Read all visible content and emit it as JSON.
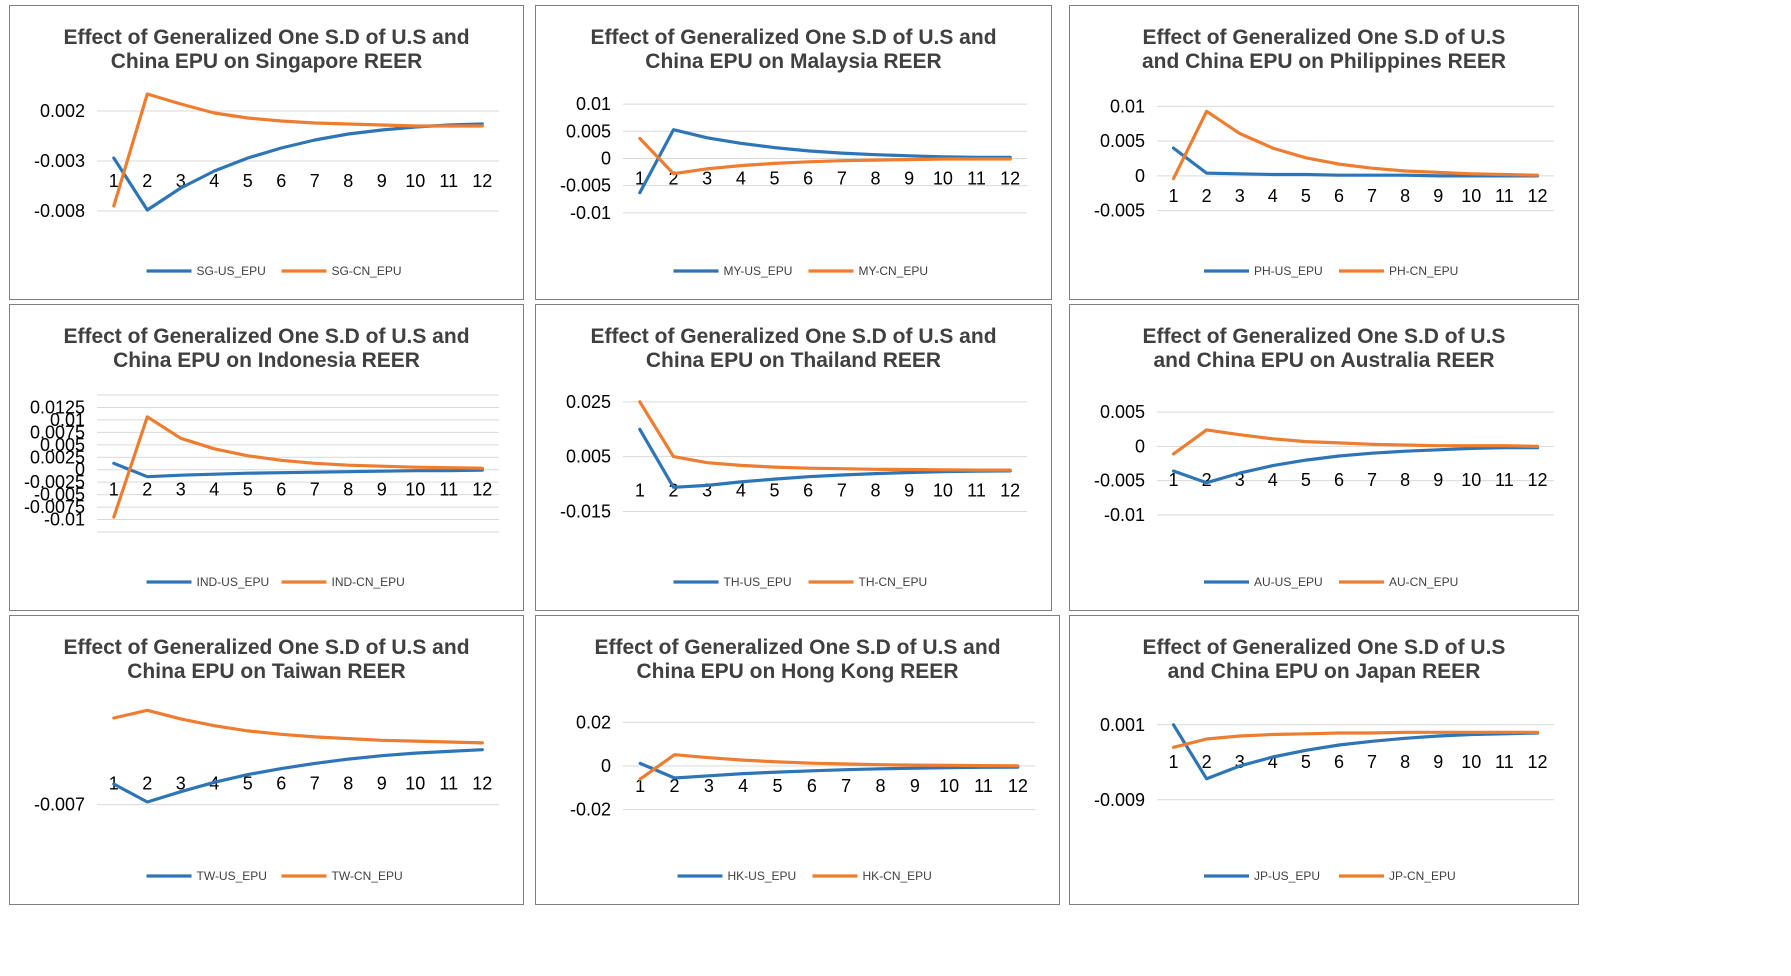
{
  "colors": {
    "us": "#2e75b6",
    "cn": "#ed7d31",
    "grid": "#d9d9d9",
    "border": "#7f7f7f"
  },
  "chart_data": [
    {
      "type": "line",
      "title_lines": [
        "Effect of Generalized One S.D of U.S and",
        "China EPU on Singapore REER"
      ],
      "categories": [
        "1",
        "2",
        "3",
        "4",
        "5",
        "6",
        "7",
        "8",
        "9",
        "10",
        "11",
        "12"
      ],
      "y_ticks": [
        0.002,
        -0.003,
        -0.008
      ],
      "y_tick_labels": [
        "0.002",
        "-0.003",
        "-0.008"
      ],
      "ylim": [
        -0.009,
        0.0035
      ],
      "grid_lines": [
        0.002,
        -0.003,
        -0.008
      ],
      "axis_value": -0.003,
      "series": [
        {
          "name": "SG-US_EPU",
          "values": [
            -0.0027,
            -0.0079,
            -0.0057,
            -0.004,
            -0.0027,
            -0.0017,
            -0.0009,
            -0.0003,
            0.0001,
            0.0004,
            0.0006,
            0.0007
          ]
        },
        {
          "name": "SG-CN_EPU",
          "values": [
            -0.0075,
            0.0037,
            0.0027,
            0.0018,
            0.0013,
            0.001,
            0.0008,
            0.0007,
            0.0006,
            0.0005,
            0.0005,
            0.0005
          ]
        }
      ]
    },
    {
      "type": "line",
      "title_lines": [
        "Effect of Generalized One S.D of U.S and",
        "China EPU on Malaysia REER"
      ],
      "categories": [
        "1",
        "2",
        "3",
        "4",
        "5",
        "6",
        "7",
        "8",
        "9",
        "10",
        "11",
        "12"
      ],
      "y_ticks": [
        0.01,
        0.005,
        0,
        -0.005,
        -0.01
      ],
      "y_tick_labels": [
        "0.01",
        "0.005",
        "0",
        "-0.005",
        "-0.01"
      ],
      "ylim": [
        -0.0115,
        0.0115
      ],
      "grid_lines": [
        0.01,
        0.005,
        0,
        -0.005,
        -0.01
      ],
      "axis_value": 0,
      "series": [
        {
          "name": "MY-US_EPU",
          "values": [
            -0.0063,
            0.0053,
            0.0038,
            0.0028,
            0.002,
            0.0014,
            0.001,
            0.0007,
            0.0005,
            0.0003,
            0.0002,
            0.0002
          ]
        },
        {
          "name": "MY-CN_EPU",
          "values": [
            0.0037,
            -0.0028,
            -0.0019,
            -0.0013,
            -0.0009,
            -0.0006,
            -0.0004,
            -0.0003,
            -0.0002,
            -0.0001,
            -0.0001,
            -0.0001
          ]
        }
      ]
    },
    {
      "type": "line",
      "title_lines": [
        "Effect of Generalized One S.D of U.S",
        "and China EPU on Philippines REER"
      ],
      "categories": [
        "1",
        "2",
        "3",
        "4",
        "5",
        "6",
        "7",
        "8",
        "9",
        "10",
        "11",
        "12"
      ],
      "y_ticks": [
        0.01,
        0.005,
        0,
        -0.005
      ],
      "y_tick_labels": [
        "0.01",
        "0.005",
        "0",
        "-0.005"
      ],
      "ylim": [
        -0.0065,
        0.0115
      ],
      "grid_lines": [
        0.01,
        0.005,
        0,
        -0.005
      ],
      "axis_value": 0,
      "series": [
        {
          "name": "PH-US_EPU",
          "values": [
            0.004,
            0.0004,
            0.0003,
            0.0002,
            0.0002,
            0.0001,
            0.0001,
            0.0001,
            0.0,
            0.0,
            0.0,
            0.0
          ]
        },
        {
          "name": "PH-CN_EPU",
          "values": [
            -0.0004,
            0.0093,
            0.0061,
            0.004,
            0.0026,
            0.0017,
            0.0011,
            0.0007,
            0.0005,
            0.0003,
            0.0002,
            0.0001
          ]
        }
      ]
    },
    {
      "type": "line",
      "title_lines": [
        "Effect of Generalized One S.D of U.S and",
        "China EPU on Indonesia REER"
      ],
      "categories": [
        "1",
        "2",
        "3",
        "4",
        "5",
        "6",
        "7",
        "8",
        "9",
        "10",
        "11",
        "12"
      ],
      "y_ticks": [
        0.0125,
        0.01,
        0.0075,
        0.005,
        0.0025,
        0,
        -0.0025,
        -0.005,
        -0.0075,
        -0.01
      ],
      "y_tick_labels": [
        "0.0125",
        "0.01",
        "0.0075",
        "0.005",
        "0.0025",
        "0",
        "-0.0025",
        "-0.005",
        "-0.0075",
        "-0.01"
      ],
      "ylim": [
        -0.0125,
        0.015
      ],
      "grid_lines": [
        0.015,
        0.0125,
        0.01,
        0.0075,
        0.005,
        0.0025,
        0,
        -0.0025,
        -0.005,
        -0.0075,
        -0.01,
        -0.0125
      ],
      "axis_value": 0,
      "series": [
        {
          "name": "IND-US_EPU",
          "values": [
            0.0013,
            -0.0014,
            -0.0011,
            -0.0009,
            -0.0007,
            -0.0006,
            -0.0005,
            -0.0004,
            -0.0003,
            -0.0002,
            -0.0002,
            -0.0001
          ]
        },
        {
          "name": "IND-CN_EPU",
          "values": [
            -0.0095,
            0.0106,
            0.0063,
            0.0042,
            0.0028,
            0.0019,
            0.0013,
            0.0009,
            0.0007,
            0.0005,
            0.0004,
            0.0003
          ]
        }
      ]
    },
    {
      "type": "line",
      "title_lines": [
        "Effect of Generalized One S.D of U.S and",
        "China EPU on Thailand REER"
      ],
      "categories": [
        "1",
        "2",
        "3",
        "4",
        "5",
        "6",
        "7",
        "8",
        "9",
        "10",
        "11",
        "12"
      ],
      "y_ticks": [
        0.025,
        0.005,
        -0.015
      ],
      "y_tick_labels": [
        "0.025",
        "0.005",
        "-0.015"
      ],
      "ylim": [
        -0.0225,
        0.0275
      ],
      "grid_lines": [
        0.025,
        0.005,
        -0.015
      ],
      "axis_value": 0,
      "series": [
        {
          "name": "TH-US_EPU",
          "values": [
            0.015,
            -0.0062,
            -0.0055,
            -0.0042,
            -0.0032,
            -0.0023,
            -0.0017,
            -0.0012,
            -0.0008,
            -0.0005,
            -0.0003,
            -0.0002
          ]
        },
        {
          "name": "TH-CN_EPU",
          "values": [
            0.025,
            0.005,
            0.0028,
            0.0018,
            0.0012,
            0.0008,
            0.0006,
            0.0004,
            0.0003,
            0.0002,
            0.0001,
            0.0001
          ]
        }
      ]
    },
    {
      "type": "line",
      "title_lines": [
        "Effect of Generalized One S.D of U.S",
        "and China EPU on Australia REER"
      ],
      "categories": [
        "1",
        "2",
        "3",
        "4",
        "5",
        "6",
        "7",
        "8",
        "9",
        "10",
        "11",
        "12"
      ],
      "y_ticks": [
        0.005,
        0,
        -0.005,
        -0.01
      ],
      "y_tick_labels": [
        "0.005",
        "0",
        "-0.005",
        "-0.01"
      ],
      "ylim": [
        -0.0125,
        0.0075
      ],
      "grid_lines": [
        0.005,
        0,
        -0.005,
        -0.01
      ],
      "axis_value": -0.002,
      "series": [
        {
          "name": "AU-US_EPU",
          "values": [
            -0.0036,
            -0.0053,
            -0.0039,
            -0.0028,
            -0.002,
            -0.0014,
            -0.001,
            -0.0007,
            -0.0005,
            -0.0003,
            -0.0002,
            -0.0002
          ]
        },
        {
          "name": "AU-CN_EPU",
          "values": [
            -0.0011,
            0.0024,
            0.0017,
            0.0011,
            0.0007,
            0.0005,
            0.0003,
            0.0002,
            0.0001,
            0.0001,
            0.0001,
            0.0
          ]
        }
      ]
    },
    {
      "type": "line",
      "title_lines": [
        "Effect of Generalized One S.D of U.S and",
        "China EPU on Taiwan REER"
      ],
      "categories": [
        "1",
        "2",
        "3",
        "4",
        "5",
        "6",
        "7",
        "8",
        "9",
        "10",
        "11",
        "12"
      ],
      "y_ticks": [
        -0.007
      ],
      "y_tick_labels": [
        "-0.007"
      ],
      "ylim": [
        -0.0095,
        0.0045
      ],
      "grid_lines": [
        -0.007
      ],
      "axis_value": -0.0022,
      "series": [
        {
          "name": "TW-US_EPU",
          "values": [
            -0.0046,
            -0.0067,
            -0.0055,
            -0.0044,
            -0.0035,
            -0.0028,
            -0.0022,
            -0.0017,
            -0.0013,
            -0.001,
            -0.0008,
            -0.0006
          ]
        },
        {
          "name": "TW-CN_EPU",
          "values": [
            0.0031,
            0.004,
            0.003,
            0.0022,
            0.0016,
            0.0012,
            0.0009,
            0.0007,
            0.0005,
            0.0004,
            0.0003,
            0.0002
          ]
        }
      ]
    },
    {
      "type": "line",
      "title_lines": [
        "Effect of Generalized One S.D of U.S and",
        "China EPU on Hong Kong REER"
      ],
      "categories": [
        "1",
        "2",
        "3",
        "4",
        "5",
        "6",
        "7",
        "8",
        "9",
        "10",
        "11",
        "12"
      ],
      "y_ticks": [
        0.02,
        0,
        -0.02
      ],
      "y_tick_labels": [
        "0.02",
        "0",
        "-0.02"
      ],
      "ylim": [
        -0.0275,
        0.0275
      ],
      "grid_lines": [
        0.02,
        0,
        -0.02
      ],
      "axis_value": 0,
      "series": [
        {
          "name": "HK-US_EPU",
          "values": [
            0.0012,
            -0.0055,
            -0.0045,
            -0.0035,
            -0.0028,
            -0.0022,
            -0.0017,
            -0.0013,
            -0.001,
            -0.0008,
            -0.0006,
            -0.0005
          ]
        },
        {
          "name": "HK-CN_EPU",
          "values": [
            -0.006,
            0.0052,
            0.0038,
            0.0027,
            0.0019,
            0.0013,
            0.0009,
            0.0006,
            0.0004,
            0.0003,
            0.0002,
            0.0001
          ]
        }
      ]
    },
    {
      "type": "line",
      "title_lines": [
        "Effect of Generalized One S.D of U.S",
        "and China EPU on Japan REER"
      ],
      "categories": [
        "1",
        "2",
        "3",
        "4",
        "5",
        "6",
        "7",
        "8",
        "9",
        "10",
        "11",
        "12"
      ],
      "y_ticks": [
        0.001,
        -0.009
      ],
      "y_tick_labels": [
        "0.001",
        "-0.009"
      ],
      "ylim": [
        -0.0125,
        0.0035
      ],
      "grid_lines": [
        0.001,
        -0.009
      ],
      "axis_value": -0.0013,
      "series": [
        {
          "name": "JP-US_EPU",
          "values": [
            0.001,
            -0.0062,
            -0.0045,
            -0.0033,
            -0.0024,
            -0.0017,
            -0.0012,
            -0.0008,
            -0.0005,
            -0.0003,
            -0.0002,
            -0.0001
          ]
        },
        {
          "name": "JP-CN_EPU",
          "values": [
            -0.002,
            -0.0009,
            -0.0005,
            -0.0003,
            -0.0002,
            -0.0001,
            -0.0001,
            0.0,
            0.0,
            0.0,
            0.0,
            0.0
          ]
        }
      ]
    }
  ]
}
